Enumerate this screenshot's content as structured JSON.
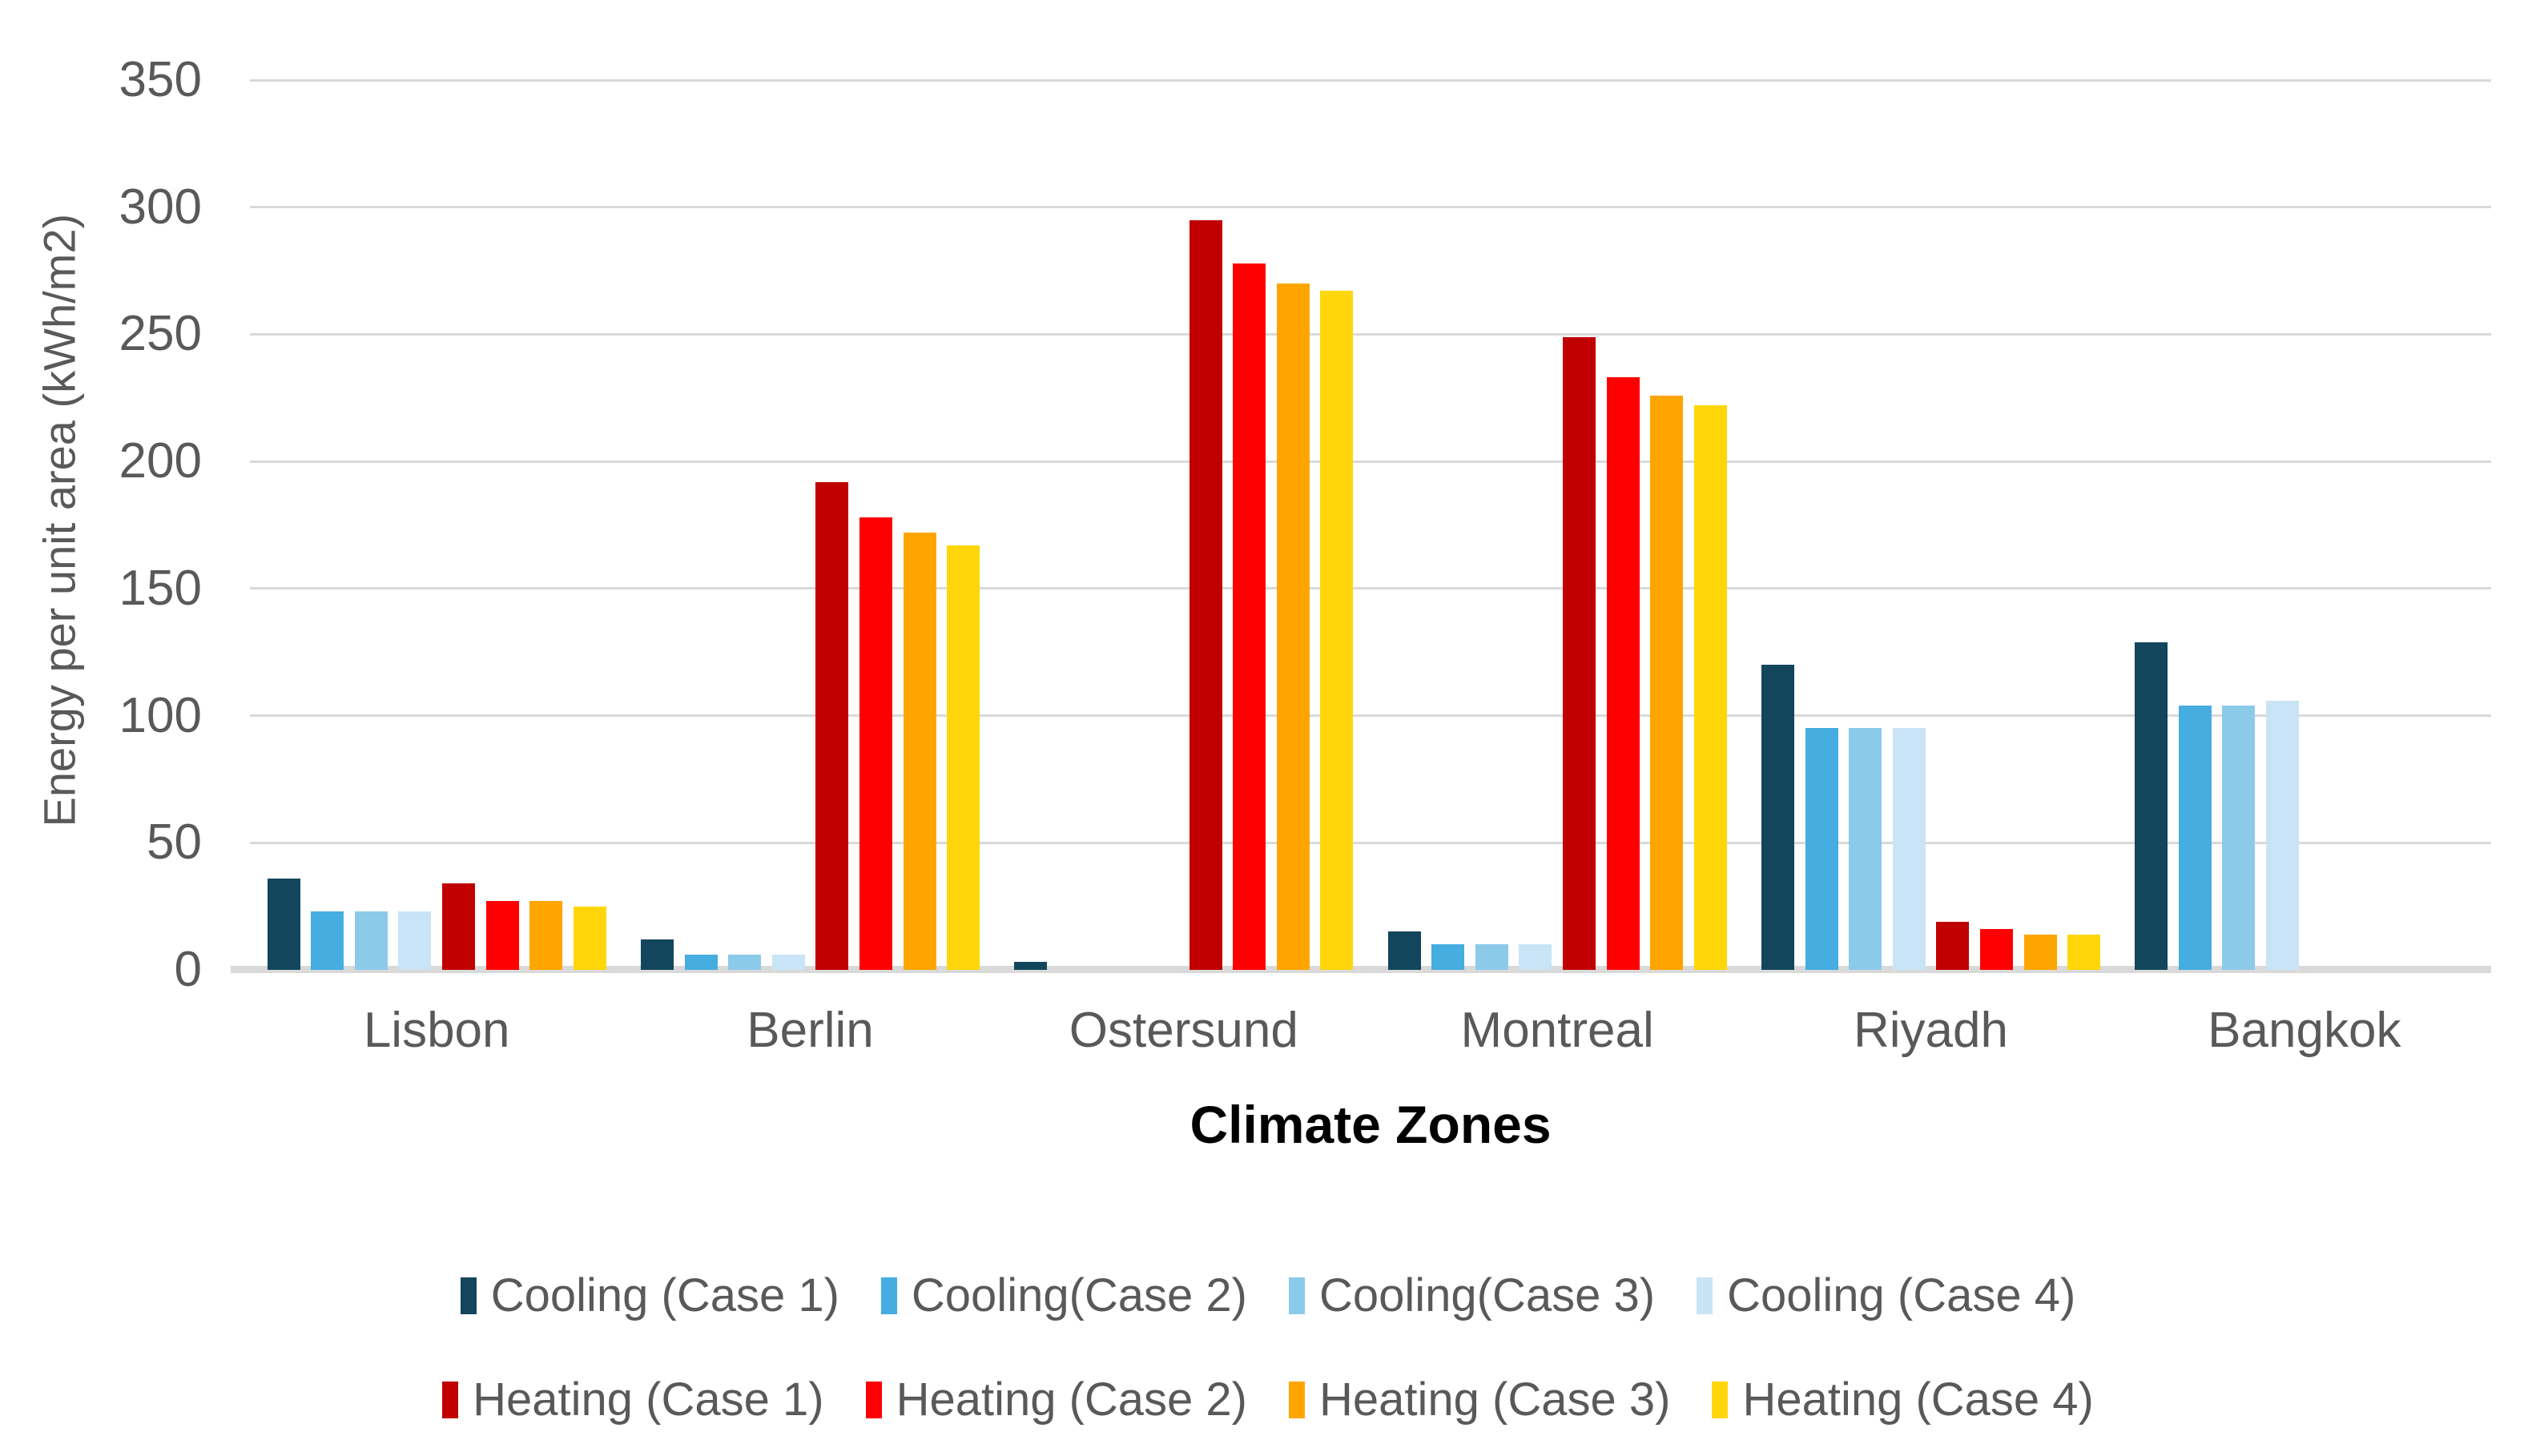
{
  "chart_data": {
    "type": "bar",
    "title": "",
    "xlabel": "Climate Zones",
    "ylabel": "Energy per unit area (kWh/m2)",
    "categories": [
      "Lisbon",
      "Berlin",
      "Ostersund",
      "Montreal",
      "Riyadh",
      "Bangkok"
    ],
    "series": [
      {
        "name": "Cooling (Case 1)",
        "color": "#13455C",
        "values": [
          36,
          12,
          3,
          15,
          120,
          129
        ]
      },
      {
        "name": "Cooling(Case 2)",
        "color": "#45ADE0",
        "values": [
          23,
          6,
          0,
          10,
          95,
          104
        ]
      },
      {
        "name": "Cooling(Case 3)",
        "color": "#8CCAEA",
        "values": [
          23,
          6,
          0,
          10,
          95,
          104
        ]
      },
      {
        "name": "Cooling (Case 4)",
        "color": "#C9E4F6",
        "values": [
          23,
          6,
          0,
          10,
          95,
          106
        ]
      },
      {
        "name": "Heating (Case 1)",
        "color": "#C00000",
        "values": [
          34,
          192,
          295,
          249,
          19,
          0
        ]
      },
      {
        "name": "Heating (Case 2)",
        "color": "#FF0000",
        "values": [
          27,
          178,
          278,
          233,
          16,
          0
        ]
      },
      {
        "name": "Heating (Case 3)",
        "color": "#FFA500",
        "values": [
          27,
          172,
          270,
          226,
          14,
          0
        ]
      },
      {
        "name": "Heating (Case 4)",
        "color": "#FFD60A",
        "values": [
          25,
          167,
          267,
          222,
          14,
          0
        ]
      }
    ],
    "y_axis": {
      "min": 0,
      "max": 350,
      "step": 50,
      "ticks": [
        0,
        50,
        100,
        150,
        200,
        250,
        300,
        350
      ]
    },
    "grid": true,
    "legend_position": "bottom",
    "legend_rows": [
      [
        0,
        1,
        2,
        3
      ],
      [
        4,
        5,
        6,
        7
      ]
    ],
    "styles": {
      "gridline_color": "#D9D9D9",
      "axis_text_color": "#595959",
      "x_title_color": "#000000",
      "background": "#FFFFFF"
    }
  }
}
